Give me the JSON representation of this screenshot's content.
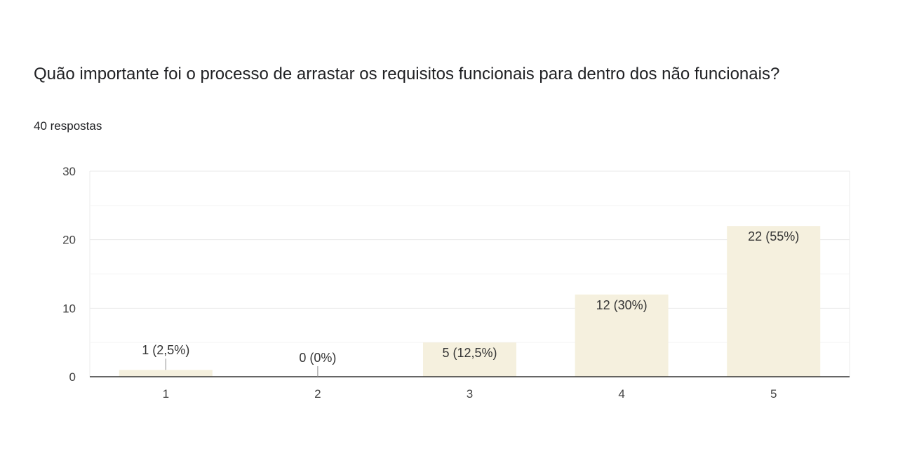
{
  "header": {
    "title": "Quão importante foi o processo de arrastar os requisitos funcionais para dentro dos não funcionais?",
    "responses": "40 respostas"
  },
  "chart_data": {
    "type": "bar",
    "categories": [
      "1",
      "2",
      "3",
      "4",
      "5"
    ],
    "values": [
      1,
      0,
      5,
      12,
      22
    ],
    "data_labels": [
      "1 (2,5%)",
      "0 (0%)",
      "5 (12,5%)",
      "12 (30%)",
      "22 (55%)"
    ],
    "yticks": [
      0,
      10,
      20,
      30
    ],
    "ylim": [
      0,
      30
    ],
    "grid": true,
    "bar_color": "#f5f0de",
    "xlabel": "",
    "ylabel": ""
  }
}
